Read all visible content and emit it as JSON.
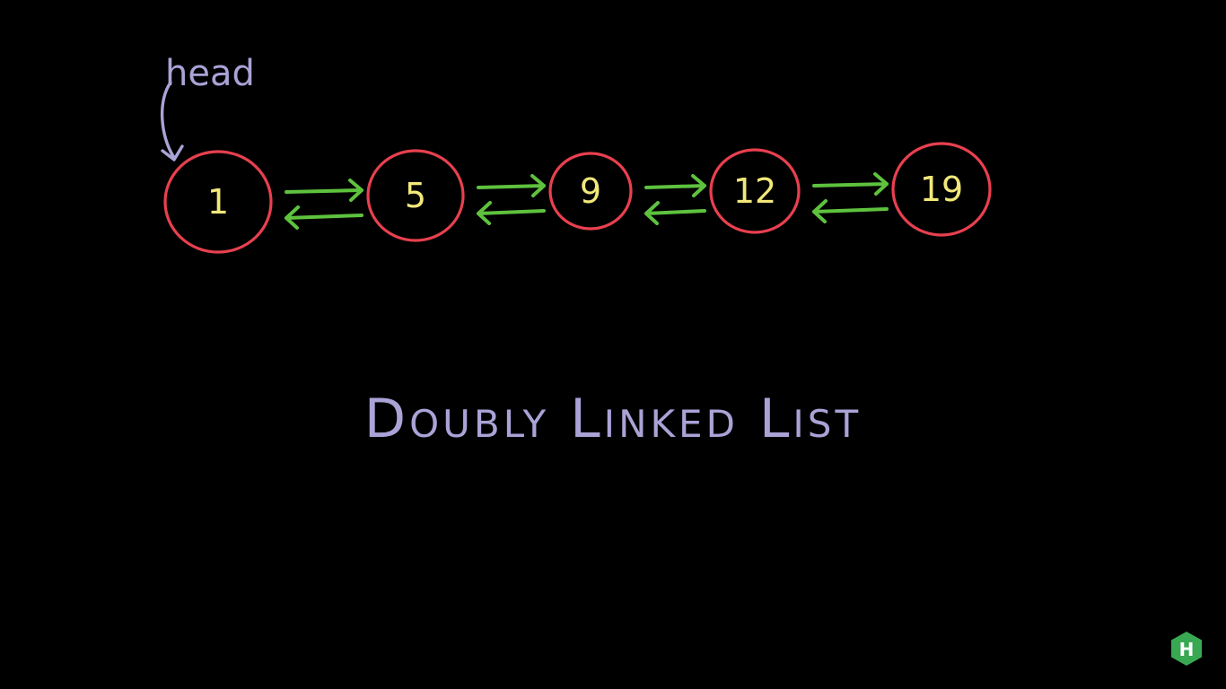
{
  "head_label": "head",
  "title": "Doubly Linked List",
  "nodes": [
    {
      "value": "1"
    },
    {
      "value": "5"
    },
    {
      "value": "9"
    },
    {
      "value": "12"
    },
    {
      "value": "19"
    }
  ],
  "brand_letter": "H",
  "colors": {
    "background": "#000000",
    "node_outline": "#e8404f",
    "node_value": "#f2e87a",
    "link_arrow": "#5ec23e",
    "label": "#a9a3d6",
    "brand": "#39a852"
  },
  "icons": {
    "head_pointer": "curved-arrow-down-icon",
    "link": "bidirectional-arrow-icon",
    "brand": "hexagon-logo-icon"
  }
}
